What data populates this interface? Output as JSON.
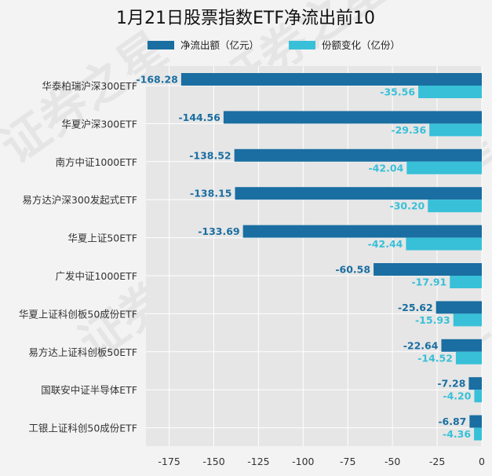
{
  "chart_data": {
    "type": "bar",
    "orientation": "horizontal",
    "title": "1月21日股票指数ETF净流出前10",
    "watermark": "证券之星",
    "categories": [
      "华泰柏瑞沪深300ETF",
      "华夏沪深300ETF",
      "南方中证1000ETF",
      "易方达沪深300发起式ETF",
      "华夏上证50ETF",
      "广发中证1000ETF",
      "华夏上证科创板50成份ETF",
      "易方达上证科创板50ETF",
      "国联安中证半导体ETF",
      "工银上证科创50成份ETF"
    ],
    "series": [
      {
        "name": "净流出额（亿元）",
        "color": "#1a6ea1",
        "values": [
          -168.28,
          -144.56,
          -138.52,
          -138.15,
          -133.69,
          -60.58,
          -25.62,
          -22.64,
          -7.28,
          -6.87
        ],
        "labels": [
          "-168.28",
          "-144.56",
          "-138.52",
          "-138.15",
          "-133.69",
          "-60.58",
          "-25.62",
          "-22.64",
          "-7.28",
          "-6.87"
        ]
      },
      {
        "name": "份额变化（亿份）",
        "color": "#38c0d8",
        "values": [
          -35.56,
          -29.36,
          -42.04,
          -30.2,
          -42.44,
          -17.91,
          -15.93,
          -14.52,
          -4.2,
          -4.36
        ],
        "labels": [
          "-35.56",
          "-29.36",
          "-42.04",
          "-30.20",
          "-42.44",
          "-17.91",
          "-15.93",
          "-14.52",
          "-4.20",
          "-4.36"
        ]
      }
    ],
    "xlim": [
      -188,
      0
    ],
    "xticks": [
      -175,
      -150,
      -125,
      -100,
      -75,
      -50,
      -25,
      0
    ],
    "xtick_labels": [
      "-175",
      "-150",
      "-125",
      "-100",
      "-75",
      "-50",
      "-25",
      "0"
    ],
    "grid": true,
    "legend_position": "top"
  }
}
